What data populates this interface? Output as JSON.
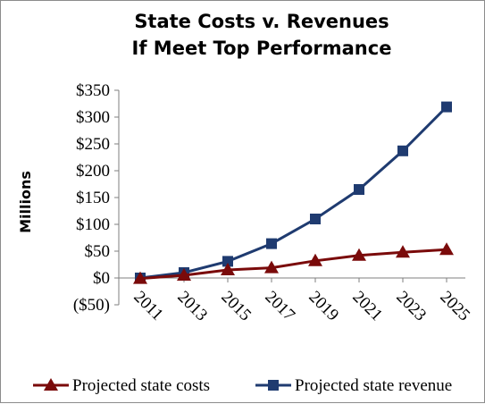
{
  "chart_data": {
    "type": "line",
    "title": [
      "State Costs v. Revenues",
      "If Meet Top Performance"
    ],
    "ylabel": "Millions",
    "xlabel": "",
    "x": [
      "2011",
      "2013",
      "2015",
      "2017",
      "2019",
      "2021",
      "2023",
      "2025"
    ],
    "y_ticks": [
      "($50)",
      "$0",
      "$50",
      "$100",
      "$150",
      "$200",
      "$250",
      "$300",
      "$350"
    ],
    "ylim": [
      -50,
      350
    ],
    "grid": false,
    "legend_position": "bottom",
    "series": [
      {
        "name": "Projected state costs",
        "marker": "triangle",
        "color": "#7a0a0a",
        "values": [
          -1,
          5,
          15,
          19,
          32,
          42,
          48,
          53
        ]
      },
      {
        "name": "Projected state revenue",
        "marker": "square",
        "color": "#1f3b70",
        "values": [
          0,
          10,
          31,
          64,
          110,
          165,
          237,
          319
        ]
      }
    ]
  }
}
